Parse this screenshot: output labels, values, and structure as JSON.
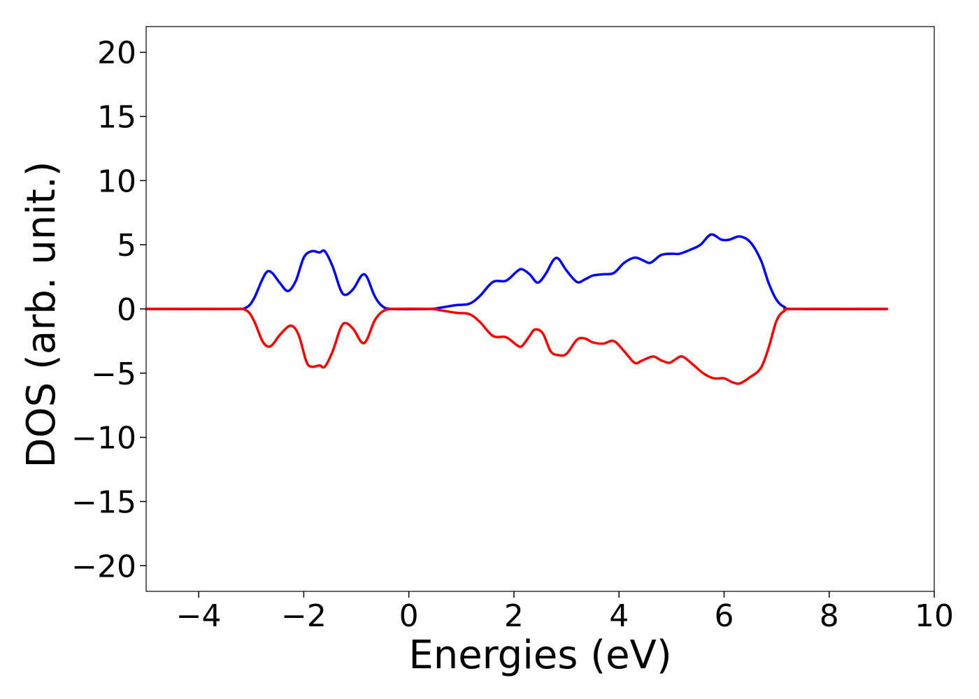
{
  "chart_data": {
    "type": "line",
    "title": "",
    "xlabel": "Energies (eV)",
    "ylabel": "DOS (arb. unit.)",
    "xlim": [
      -5,
      10
    ],
    "ylim": [
      -22,
      22
    ],
    "x_ticks": [
      -4,
      -2,
      0,
      2,
      4,
      6,
      8,
      10
    ],
    "x_tick_labels": [
      "−4",
      "−2",
      "0",
      "2",
      "4",
      "6",
      "8",
      "10"
    ],
    "y_ticks": [
      20,
      15,
      10,
      5,
      0,
      -5,
      -10,
      -15,
      -20
    ],
    "y_tick_labels": [
      "20",
      "15",
      "10",
      "5",
      "0",
      "−5",
      "−10",
      "−15",
      "−20"
    ],
    "grid": false,
    "legend": "none",
    "series": [
      {
        "color": "#0000ff",
        "points": [
          [
            -5.0,
            0.0
          ],
          [
            -3.4,
            0.0
          ],
          [
            -3.1,
            0.1
          ],
          [
            -2.95,
            0.8
          ],
          [
            -2.8,
            2.2
          ],
          [
            -2.7,
            2.9
          ],
          [
            -2.6,
            2.8
          ],
          [
            -2.45,
            2.0
          ],
          [
            -2.3,
            1.4
          ],
          [
            -2.15,
            2.2
          ],
          [
            -2.0,
            4.0
          ],
          [
            -1.85,
            4.5
          ],
          [
            -1.7,
            4.4
          ],
          [
            -1.6,
            4.5
          ],
          [
            -1.45,
            3.3
          ],
          [
            -1.3,
            1.5
          ],
          [
            -1.2,
            1.1
          ],
          [
            -1.05,
            1.6
          ],
          [
            -0.9,
            2.6
          ],
          [
            -0.8,
            2.5
          ],
          [
            -0.65,
            1.0
          ],
          [
            -0.5,
            0.2
          ],
          [
            -0.3,
            0.0
          ],
          [
            0.4,
            0.0
          ],
          [
            0.6,
            0.1
          ],
          [
            0.9,
            0.3
          ],
          [
            1.15,
            0.4
          ],
          [
            1.35,
            1.0
          ],
          [
            1.6,
            2.1
          ],
          [
            1.85,
            2.2
          ],
          [
            2.05,
            2.9
          ],
          [
            2.15,
            3.1
          ],
          [
            2.3,
            2.7
          ],
          [
            2.45,
            2.05
          ],
          [
            2.6,
            2.7
          ],
          [
            2.75,
            3.8
          ],
          [
            2.85,
            3.9
          ],
          [
            3.0,
            3.0
          ],
          [
            3.2,
            2.1
          ],
          [
            3.35,
            2.3
          ],
          [
            3.5,
            2.6
          ],
          [
            3.7,
            2.7
          ],
          [
            3.9,
            2.8
          ],
          [
            4.1,
            3.6
          ],
          [
            4.3,
            4.0
          ],
          [
            4.45,
            3.8
          ],
          [
            4.6,
            3.6
          ],
          [
            4.8,
            4.2
          ],
          [
            5.0,
            4.3
          ],
          [
            5.15,
            4.3
          ],
          [
            5.35,
            4.6
          ],
          [
            5.55,
            5.0
          ],
          [
            5.75,
            5.8
          ],
          [
            5.95,
            5.4
          ],
          [
            6.1,
            5.4
          ],
          [
            6.3,
            5.65
          ],
          [
            6.5,
            5.2
          ],
          [
            6.7,
            3.8
          ],
          [
            6.85,
            2.0
          ],
          [
            7.0,
            0.7
          ],
          [
            7.15,
            0.15
          ],
          [
            7.35,
            0.0
          ],
          [
            9.1,
            0.0
          ]
        ]
      },
      {
        "color": "#ff0000",
        "points": [
          [
            -5.0,
            0.0
          ],
          [
            -3.4,
            0.0
          ],
          [
            -3.1,
            -0.1
          ],
          [
            -2.95,
            -0.9
          ],
          [
            -2.8,
            -2.4
          ],
          [
            -2.7,
            -2.9
          ],
          [
            -2.6,
            -2.8
          ],
          [
            -2.45,
            -2.0
          ],
          [
            -2.25,
            -1.3
          ],
          [
            -2.1,
            -2.0
          ],
          [
            -1.95,
            -4.1
          ],
          [
            -1.85,
            -4.5
          ],
          [
            -1.7,
            -4.4
          ],
          [
            -1.6,
            -4.5
          ],
          [
            -1.45,
            -3.3
          ],
          [
            -1.3,
            -1.5
          ],
          [
            -1.2,
            -1.1
          ],
          [
            -1.05,
            -1.6
          ],
          [
            -0.9,
            -2.6
          ],
          [
            -0.8,
            -2.4
          ],
          [
            -0.65,
            -0.9
          ],
          [
            -0.5,
            -0.2
          ],
          [
            -0.3,
            0.0
          ],
          [
            0.4,
            0.0
          ],
          [
            0.6,
            -0.1
          ],
          [
            0.9,
            -0.3
          ],
          [
            1.15,
            -0.4
          ],
          [
            1.35,
            -1.0
          ],
          [
            1.6,
            -2.1
          ],
          [
            1.85,
            -2.2
          ],
          [
            2.05,
            -2.8
          ],
          [
            2.15,
            -2.9
          ],
          [
            2.3,
            -2.1
          ],
          [
            2.4,
            -1.6
          ],
          [
            2.55,
            -1.9
          ],
          [
            2.7,
            -3.3
          ],
          [
            2.85,
            -3.6
          ],
          [
            3.0,
            -3.5
          ],
          [
            3.2,
            -2.4
          ],
          [
            3.35,
            -2.3
          ],
          [
            3.5,
            -2.6
          ],
          [
            3.7,
            -2.7
          ],
          [
            3.9,
            -2.5
          ],
          [
            4.1,
            -3.3
          ],
          [
            4.3,
            -4.2
          ],
          [
            4.45,
            -4.0
          ],
          [
            4.65,
            -3.7
          ],
          [
            4.8,
            -4.0
          ],
          [
            4.95,
            -4.2
          ],
          [
            5.05,
            -4.0
          ],
          [
            5.2,
            -3.7
          ],
          [
            5.4,
            -4.3
          ],
          [
            5.6,
            -5.0
          ],
          [
            5.8,
            -5.4
          ],
          [
            6.0,
            -5.4
          ],
          [
            6.15,
            -5.7
          ],
          [
            6.3,
            -5.8
          ],
          [
            6.5,
            -5.3
          ],
          [
            6.7,
            -4.6
          ],
          [
            6.85,
            -3.0
          ],
          [
            7.0,
            -0.9
          ],
          [
            7.15,
            -0.15
          ],
          [
            7.35,
            0.0
          ],
          [
            9.1,
            0.0
          ]
        ]
      }
    ]
  }
}
